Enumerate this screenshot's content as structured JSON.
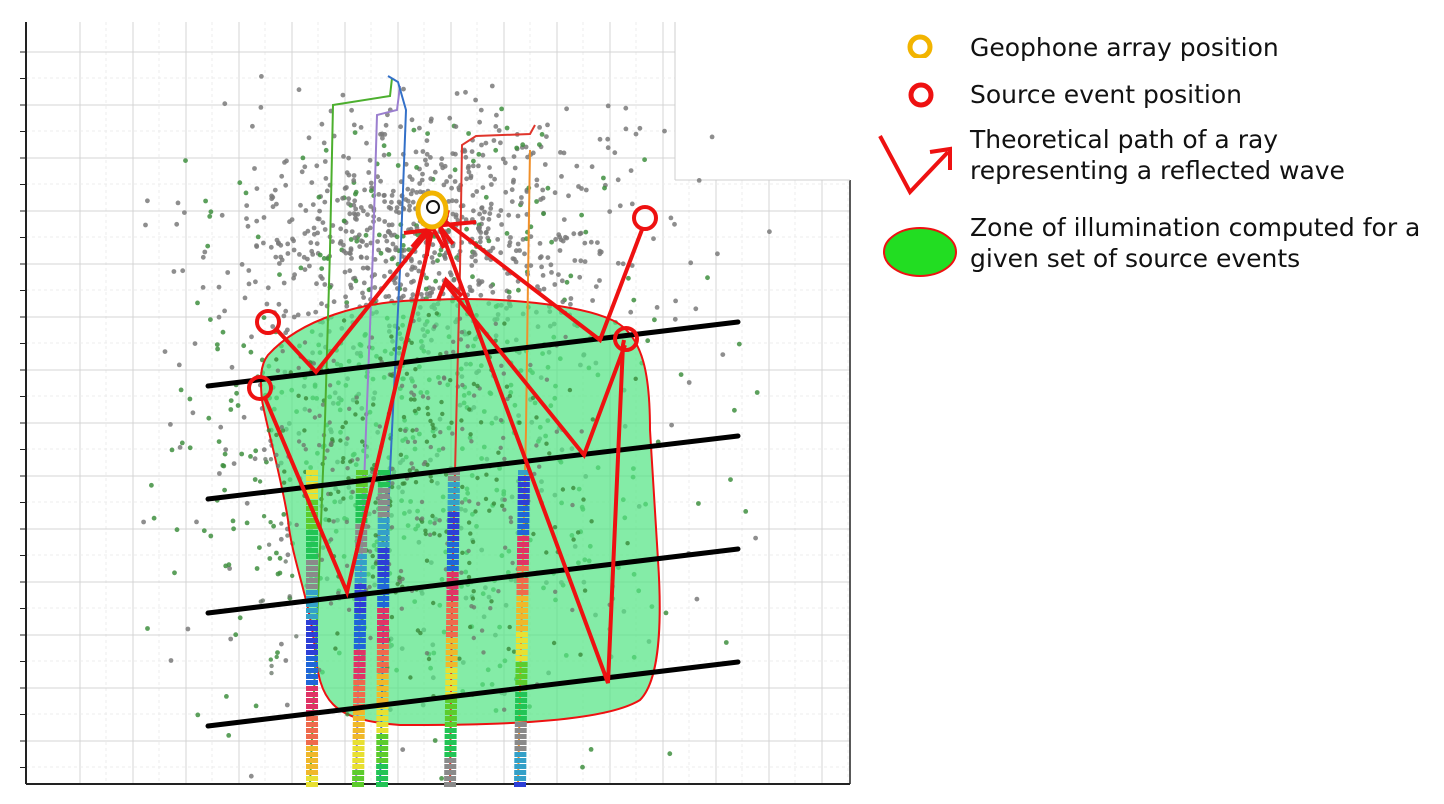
{
  "legend": {
    "items": [
      {
        "id": "geophone",
        "label": "Geophone array position",
        "color": "#f2b400"
      },
      {
        "id": "source",
        "label": "Source event position",
        "color": "#ee1111"
      },
      {
        "id": "ray",
        "label": "Theoretical path of a ray representing a reflected wave",
        "color": "#ee1111"
      },
      {
        "id": "zone",
        "label": "Zone of illumination computed for a given set of source events",
        "color": "#22dd22"
      }
    ]
  },
  "colors": {
    "grid": "#d0d0d0",
    "scatter_gray": "#7a7a7a",
    "scatter_green": "#3f8f3f",
    "zone_fill": "#55e585",
    "ray": "#ee1111",
    "reflector": "#000000",
    "geophone": "#f2b400"
  },
  "wells": [
    "green",
    "purple",
    "blue",
    "red",
    "orange"
  ]
}
